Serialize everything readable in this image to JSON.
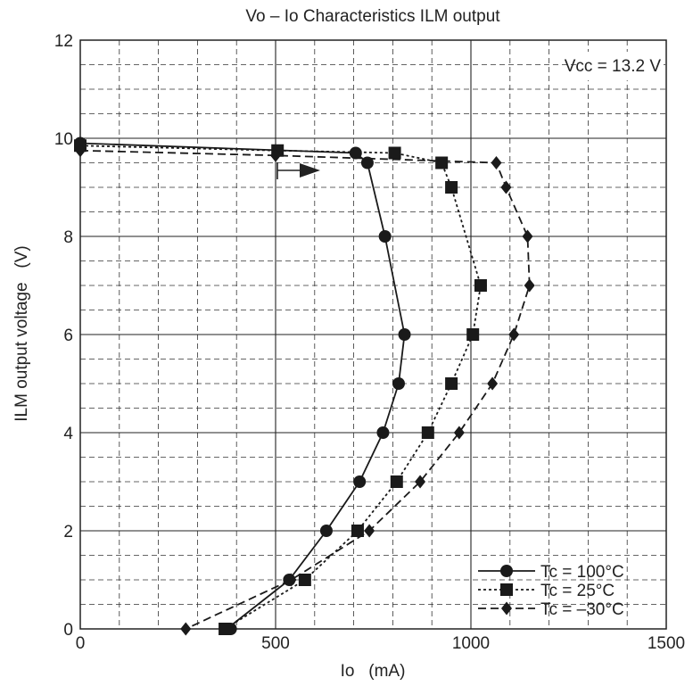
{
  "chart_data": {
    "type": "line",
    "title": "Vo – Io Characteristics   ILM output",
    "xlabel": "Io   (mA)",
    "ylabel": "ILM output voltage   (V)",
    "annotation": "Vcc = 13.2 V",
    "xlim": [
      0,
      1500
    ],
    "ylim": [
      0,
      12
    ],
    "x_ticks": [
      0,
      500,
      1000,
      1500
    ],
    "y_ticks": [
      0,
      2,
      4,
      6,
      8,
      10,
      12
    ],
    "x_tick_labels": [
      "0",
      "500",
      "1000",
      "1500"
    ],
    "y_tick_labels": [
      "0",
      "2",
      "4",
      "6",
      "8",
      "10",
      "12"
    ],
    "grid": true,
    "legend_position": "bottom-right",
    "series": [
      {
        "name": "Tc = 100°C",
        "marker": "circle",
        "line": "solid",
        "x": [
          0,
          705,
          735,
          780,
          830,
          815,
          775,
          715,
          630,
          535,
          375,
          385
        ],
        "y": [
          9.9,
          9.7,
          9.5,
          8.0,
          6.0,
          5.0,
          4.0,
          3.0,
          2.0,
          1.0,
          0.0,
          0.0
        ]
      },
      {
        "name": "Tc = 25°C",
        "marker": "square",
        "line": "dotted",
        "x": [
          0,
          505,
          805,
          925,
          950,
          1025,
          1005,
          950,
          890,
          810,
          710,
          575,
          370
        ],
        "y": [
          9.85,
          9.75,
          9.7,
          9.5,
          9.0,
          7.0,
          6.0,
          5.0,
          4.0,
          3.0,
          2.0,
          1.0,
          0.0
        ]
      },
      {
        "name": "Tc = –30°C",
        "marker": "diamond",
        "line": "dashed",
        "x": [
          0,
          500,
          1065,
          1090,
          1145,
          1150,
          1110,
          1055,
          970,
          870,
          740,
          540,
          270
        ],
        "y": [
          9.75,
          9.65,
          9.5,
          9.0,
          8.0,
          7.0,
          6.0,
          5.0,
          4.0,
          3.0,
          2.0,
          1.0,
          0.0
        ]
      }
    ]
  }
}
